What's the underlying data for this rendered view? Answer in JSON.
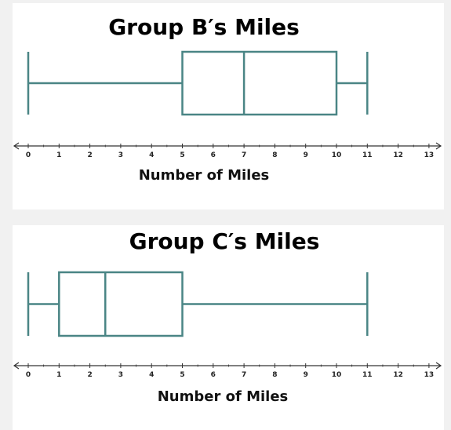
{
  "chart_data": [
    {
      "type": "boxplot",
      "title": "Group B′s Miles",
      "xlabel": "Number of Miles",
      "xlim": [
        0,
        13
      ],
      "ticks": [
        0,
        1,
        2,
        3,
        4,
        5,
        6,
        7,
        8,
        9,
        10,
        11,
        12,
        13
      ],
      "grid": false,
      "stats": {
        "min": 0,
        "q1": 5,
        "median": 7,
        "q3": 10,
        "max": 11
      }
    },
    {
      "type": "boxplot",
      "title": "Group C′s Miles",
      "xlabel": "Number of Miles",
      "xlim": [
        0,
        13
      ],
      "ticks": [
        0,
        1,
        2,
        3,
        4,
        5,
        6,
        7,
        8,
        9,
        10,
        11,
        12,
        13
      ],
      "grid": false,
      "stats": {
        "min": 0,
        "q1": 1,
        "median": 2.5,
        "q3": 5,
        "max": 11
      }
    }
  ],
  "colors": {
    "box": "#4a8585",
    "axis": "#333333",
    "panel": "#ffffff",
    "page": "#f1f1f1"
  }
}
